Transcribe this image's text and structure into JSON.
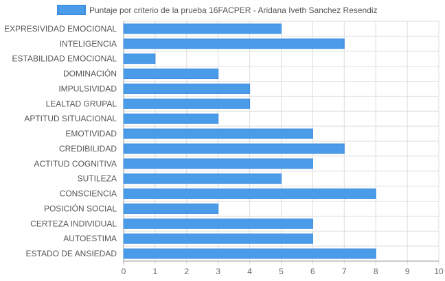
{
  "chart_data": {
    "type": "bar",
    "orientation": "horizontal",
    "categories": [
      "EXPRESIVIDAD EMOCIONAL",
      "INTELIGENCIA",
      "ESTABILIDAD EMOCIONAL",
      "DOMINACIÓN",
      "IMPULSIVIDAD",
      "LEALTAD GRUPAL",
      "APTITUD SITUACIONAL",
      "EMOTIVIDAD",
      "CREDIBILIDAD",
      "ACTITUD COGNITIVA",
      "SUTILEZA",
      "CONSCIENCIA",
      "POSICIÓN SOCIAL",
      "CERTEZA INDIVIDUAL",
      "AUTOESTIMA",
      "ESTADO DE ANSIEDAD"
    ],
    "series": [
      {
        "name": "Puntaje por criterio de la prueba 16FACPER - Aridana Iveth Sanchez Resendiz",
        "values": [
          5,
          7,
          1,
          3,
          4,
          4,
          3,
          6,
          7,
          6,
          5,
          8,
          3,
          6,
          6,
          8
        ]
      }
    ],
    "xlim": [
      0,
      10
    ],
    "xticks": [
      "0",
      "1",
      "2",
      "3",
      "4",
      "5",
      "6",
      "7",
      "8",
      "9",
      "10"
    ],
    "grid": true,
    "legend_position": "top",
    "colors": {
      "bar_fill": "#4a9be8",
      "bar_stroke": "#3b8de0",
      "grid": "#dddddd",
      "axis": "#999999"
    }
  }
}
